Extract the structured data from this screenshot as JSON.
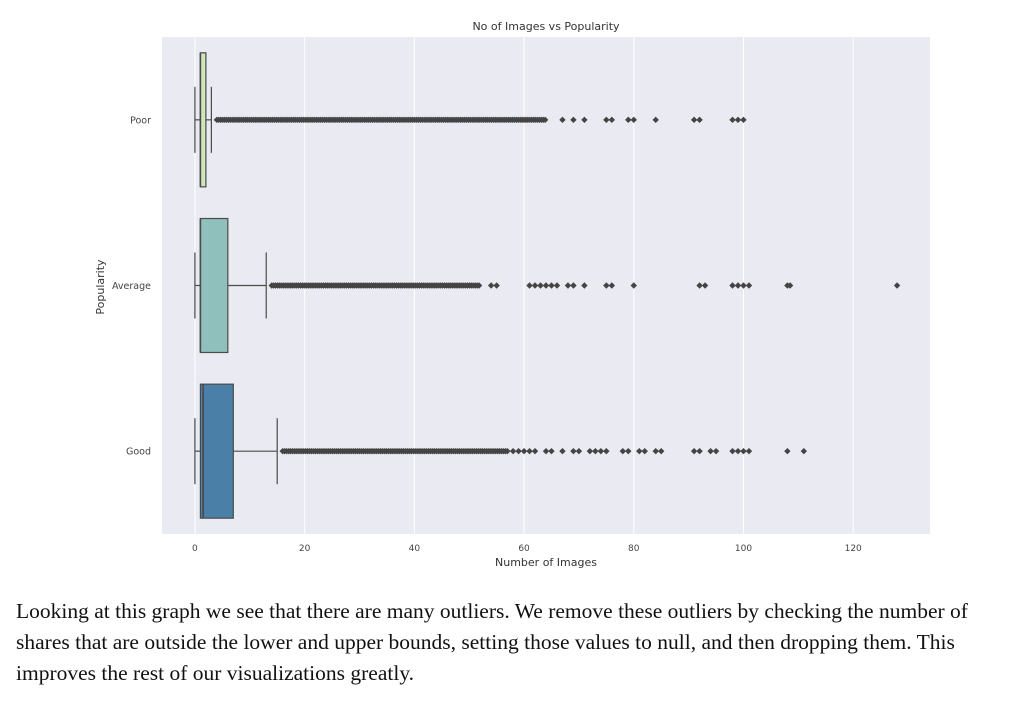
{
  "chart_data": {
    "type": "boxplot",
    "orientation": "horizontal",
    "title": "No of Images vs Popularity",
    "xlabel": "Number of Images",
    "ylabel": "Popularity",
    "xlim": [
      -6,
      134
    ],
    "xticks": [
      0,
      20,
      40,
      60,
      80,
      100,
      120
    ],
    "grid": true,
    "categories": [
      "Poor",
      "Average",
      "Good"
    ],
    "boxes": [
      {
        "name": "Poor",
        "color": "#cfe6b8",
        "whisker_low": 0,
        "q1": 1,
        "median": 1,
        "q3": 2,
        "whisker_high": 3,
        "outlier_dense_range": [
          4,
          64
        ],
        "outliers": [
          67,
          69,
          71,
          75,
          76,
          79,
          80,
          84,
          91,
          92,
          98,
          99,
          100
        ]
      },
      {
        "name": "Average",
        "color": "#8fc0bb",
        "whisker_low": 0,
        "q1": 1,
        "median": 1,
        "q3": 6,
        "whisker_high": 13,
        "outlier_dense_range": [
          14,
          52
        ],
        "outliers": [
          54,
          55,
          61,
          62,
          63,
          64,
          65,
          66,
          68,
          69,
          71,
          75,
          76,
          80,
          92,
          93,
          98,
          99,
          100,
          101,
          108,
          108.5,
          128
        ]
      },
      {
        "name": "Good",
        "color": "#4a7fa8",
        "whisker_low": 0,
        "q1": 1,
        "median": 1.5,
        "q3": 7,
        "whisker_high": 15,
        "outlier_dense_range": [
          16,
          57
        ],
        "outliers": [
          58,
          59,
          60,
          61,
          62,
          64,
          65,
          67,
          69,
          70,
          72,
          73,
          74,
          75,
          78,
          79,
          81,
          82,
          84,
          85,
          91,
          92,
          94,
          95,
          98,
          99,
          100,
          101,
          108,
          111
        ]
      }
    ],
    "colors": {
      "plot_background": "#eaeaf2",
      "grid": "#ffffff",
      "line": "#4a4a4a",
      "outlier": "#444444"
    }
  },
  "caption": "Looking at this graph we see that there are many outliers. We remove these outliers by checking the number of shares that are outside the lower and upper bounds, setting those values to null, and then dropping them. This improves the rest of our visualizations greatly."
}
